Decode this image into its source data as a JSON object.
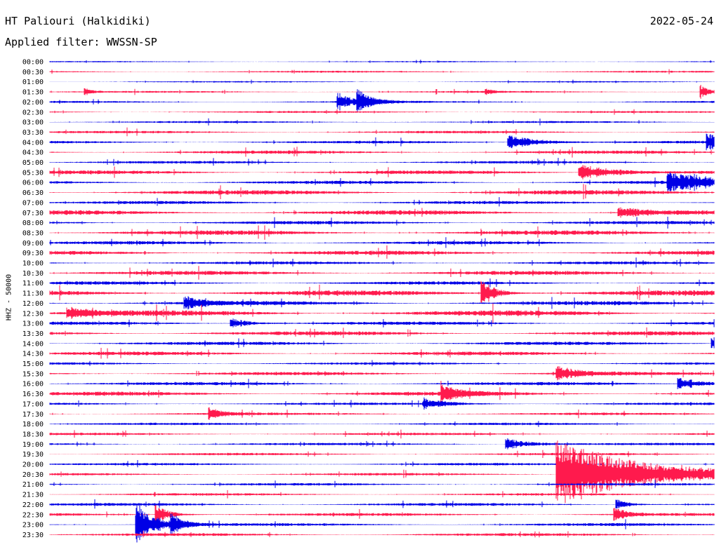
{
  "header": {
    "station": "HT Paliouri (Halkidiki)",
    "date": "2022-05-24",
    "filter": "Applied filter: WWSSN-SP"
  },
  "chart_data": {
    "type": "line",
    "title": "HT Paliouri (Halkidiki)",
    "subtitle": "Applied filter: WWSSN-SP",
    "ylabel": "HHZ - 50000",
    "xlabel": "",
    "grid": false,
    "row_labels": [
      "00:00",
      "00:30",
      "01:00",
      "01:30",
      "02:00",
      "02:30",
      "03:00",
      "03:30",
      "04:00",
      "04:30",
      "05:00",
      "05:30",
      "06:00",
      "06:30",
      "07:00",
      "07:30",
      "08:00",
      "08:30",
      "09:00",
      "09:30",
      "10:00",
      "10:30",
      "11:00",
      "11:30",
      "12:00",
      "12:30",
      "13:00",
      "13:30",
      "14:00",
      "14:30",
      "15:00",
      "15:30",
      "16:00",
      "16:30",
      "17:00",
      "17:30",
      "18:00",
      "18:30",
      "19:00",
      "19:30",
      "20:00",
      "20:30",
      "21:00",
      "21:30",
      "22:00",
      "22:30",
      "23:00",
      "23:30"
    ],
    "row_colors": [
      "#0000e6",
      "#ff1a4d"
    ],
    "row_minutes": 30,
    "noise_levels": [
      0.6,
      0.9,
      0.7,
      0.9,
      1.0,
      1.0,
      1.0,
      1.2,
      1.3,
      1.6,
      1.3,
      1.8,
      1.6,
      2.2,
      1.5,
      2.2,
      1.6,
      2.2,
      1.6,
      2.0,
      1.5,
      2.0,
      1.6,
      2.6,
      2.0,
      2.6,
      1.6,
      2.0,
      1.6,
      1.8,
      1.2,
      1.6,
      1.6,
      2.0,
      1.2,
      1.2,
      1.2,
      1.2,
      1.2,
      1.2,
      1.2,
      1.2,
      1.2,
      1.2,
      1.4,
      1.4,
      1.4,
      1.4
    ],
    "events": [
      {
        "row": 4,
        "minute": 13.0,
        "amplitude": 14,
        "duration_min": 0.6
      },
      {
        "row": 4,
        "minute": 13.9,
        "amplitude": 16,
        "duration_min": 0.6
      },
      {
        "row": 3,
        "minute": 1.6,
        "amplitude": 6,
        "duration_min": 0.3
      },
      {
        "row": 3,
        "minute": 19.7,
        "amplitude": 5,
        "duration_min": 0.3
      },
      {
        "row": 3,
        "minute": 29.4,
        "amplitude": 10,
        "duration_min": 0.4
      },
      {
        "row": 8,
        "minute": 20.7,
        "amplitude": 12,
        "duration_min": 1.2
      },
      {
        "row": 8,
        "minute": 29.7,
        "amplitude": 12,
        "duration_min": 1.0
      },
      {
        "row": 11,
        "minute": 23.9,
        "amplitude": 13,
        "duration_min": 1.5
      },
      {
        "row": 12,
        "minute": 27.9,
        "amplitude": 14,
        "duration_min": 2.0
      },
      {
        "row": 15,
        "minute": 25.7,
        "amplitude": 9,
        "duration_min": 1.2
      },
      {
        "row": 23,
        "minute": 19.5,
        "amplitude": 20,
        "duration_min": 0.6
      },
      {
        "row": 24,
        "minute": 6.1,
        "amplitude": 10,
        "duration_min": 0.8
      },
      {
        "row": 25,
        "minute": 0.8,
        "amplitude": 9,
        "duration_min": 1.0
      },
      {
        "row": 26,
        "minute": 8.2,
        "amplitude": 8,
        "duration_min": 0.8
      },
      {
        "row": 28,
        "minute": 29.9,
        "amplitude": 10,
        "duration_min": 0.6
      },
      {
        "row": 31,
        "minute": 22.9,
        "amplitude": 10,
        "duration_min": 1.0
      },
      {
        "row": 32,
        "minute": 28.4,
        "amplitude": 10,
        "duration_min": 1.0
      },
      {
        "row": 33,
        "minute": 17.7,
        "amplitude": 12,
        "duration_min": 0.8
      },
      {
        "row": 34,
        "minute": 16.9,
        "amplitude": 8,
        "duration_min": 1.0
      },
      {
        "row": 35,
        "minute": 7.2,
        "amplitude": 9,
        "duration_min": 0.6
      },
      {
        "row": 38,
        "minute": 20.6,
        "amplitude": 9,
        "duration_min": 1.0
      },
      {
        "row": 41,
        "minute": 22.9,
        "amplitude": 52,
        "duration_min": 3.5
      },
      {
        "row": 44,
        "minute": 25.6,
        "amplitude": 8,
        "duration_min": 0.6
      },
      {
        "row": 45,
        "minute": 4.8,
        "amplitude": 14,
        "duration_min": 0.6
      },
      {
        "row": 46,
        "minute": 3.9,
        "amplitude": 34,
        "duration_min": 0.8
      },
      {
        "row": 46,
        "minute": 5.5,
        "amplitude": 12,
        "duration_min": 0.5
      },
      {
        "row": 45,
        "minute": 25.5,
        "amplitude": 11,
        "duration_min": 0.6
      }
    ]
  }
}
